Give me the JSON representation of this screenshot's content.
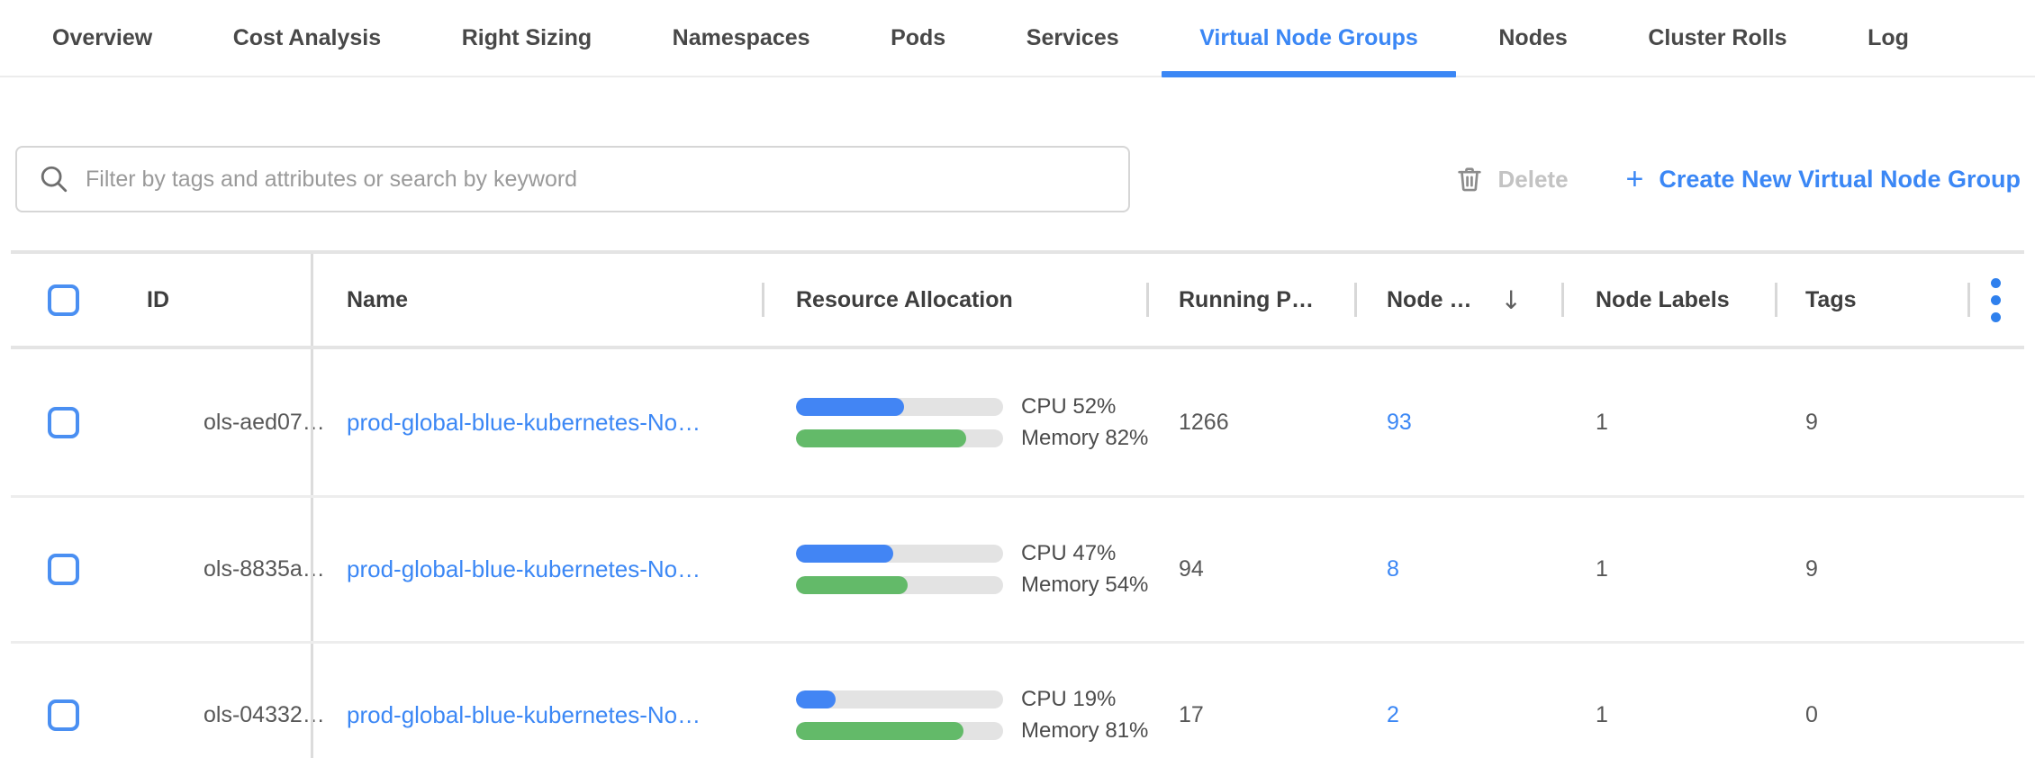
{
  "colors": {
    "accent": "#3b87f5",
    "cpu_fill": "#4285f4",
    "memory_fill": "#63ba69"
  },
  "tabs": {
    "active": "Virtual Node Groups",
    "items": [
      {
        "label": "Overview"
      },
      {
        "label": "Cost Analysis"
      },
      {
        "label": "Right Sizing"
      },
      {
        "label": "Namespaces"
      },
      {
        "label": "Pods"
      },
      {
        "label": "Services"
      },
      {
        "label": "Virtual Node Groups"
      },
      {
        "label": "Nodes"
      },
      {
        "label": "Cluster Rolls"
      },
      {
        "label": "Log"
      }
    ]
  },
  "toolbar": {
    "search_placeholder": "Filter by tags and attributes or search by keyword",
    "delete_label": "Delete",
    "create_plus": "+",
    "create_label": "Create New Virtual Node Group"
  },
  "table": {
    "headers": {
      "id": "ID",
      "name": "Name",
      "resource_allocation": "Resource Allocation",
      "running_pods": "Running P…",
      "nodes": "Node …",
      "sort_arrow": "↓",
      "node_labels": "Node Labels",
      "tags": "Tags"
    },
    "rows": [
      {
        "id": "ols-aed07…",
        "name": "prod-global-blue-kubernetes-No…",
        "cpu_percent": 52,
        "cpu_label": "CPU 52%",
        "memory_percent": 82,
        "memory_label": "Memory 82%",
        "running_pods": "1266",
        "nodes": "93",
        "node_labels": "1",
        "tags": "9"
      },
      {
        "id": "ols-8835a…",
        "name": "prod-global-blue-kubernetes-No…",
        "cpu_percent": 47,
        "cpu_label": "CPU 47%",
        "memory_percent": 54,
        "memory_label": "Memory 54%",
        "running_pods": "94",
        "nodes": "8",
        "node_labels": "1",
        "tags": "9"
      },
      {
        "id": "ols-04332…",
        "name": "prod-global-blue-kubernetes-No…",
        "cpu_percent": 19,
        "cpu_label": "CPU 19%",
        "memory_percent": 81,
        "memory_label": "Memory 81%",
        "running_pods": "17",
        "nodes": "2",
        "node_labels": "1",
        "tags": "0"
      }
    ]
  }
}
